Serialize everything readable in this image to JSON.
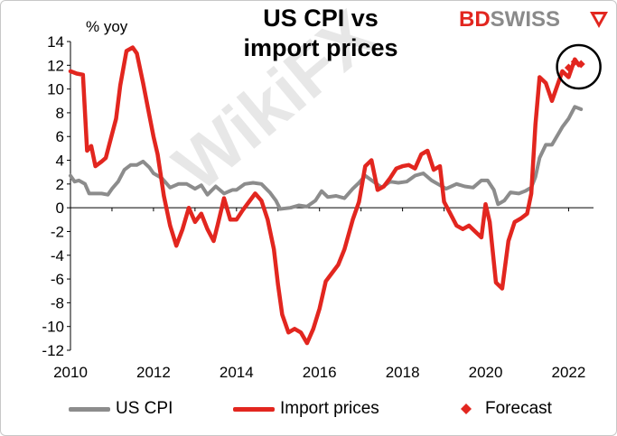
{
  "header": {
    "title": "US CPI vs import prices",
    "brand_bd": "BD",
    "brand_swiss": "SWISS",
    "watermark": "WikiFX"
  },
  "chart_data": {
    "type": "line",
    "title": "US CPI vs import prices",
    "ylabel": "% yoy",
    "xlabel": "",
    "xlim": [
      2010,
      2022.6
    ],
    "ylim": [
      -12,
      14
    ],
    "yticks": [
      14,
      12,
      10,
      8,
      6,
      4,
      2,
      0,
      -2,
      -4,
      -6,
      -8,
      -10,
      -12
    ],
    "xticks": [
      2010,
      2012,
      2014,
      2016,
      2018,
      2020,
      2022
    ],
    "grid": false,
    "legend_position": "bottom",
    "series": [
      {
        "name": "US CPI",
        "color": "#8c8c8c",
        "points": [
          [
            2010.0,
            2.7
          ],
          [
            2010.1,
            2.2
          ],
          [
            2010.2,
            2.3
          ],
          [
            2010.35,
            2.0
          ],
          [
            2010.45,
            1.2
          ],
          [
            2010.6,
            1.2
          ],
          [
            2010.75,
            1.2
          ],
          [
            2010.9,
            1.1
          ],
          [
            2011.0,
            1.6
          ],
          [
            2011.15,
            2.2
          ],
          [
            2011.3,
            3.2
          ],
          [
            2011.45,
            3.6
          ],
          [
            2011.6,
            3.6
          ],
          [
            2011.75,
            3.9
          ],
          [
            2011.9,
            3.4
          ],
          [
            2012.0,
            2.9
          ],
          [
            2012.2,
            2.5
          ],
          [
            2012.4,
            1.7
          ],
          [
            2012.6,
            2.0
          ],
          [
            2012.8,
            2.0
          ],
          [
            2013.0,
            1.6
          ],
          [
            2013.15,
            1.9
          ],
          [
            2013.3,
            1.1
          ],
          [
            2013.5,
            1.8
          ],
          [
            2013.7,
            1.2
          ],
          [
            2013.9,
            1.5
          ],
          [
            2014.0,
            1.5
          ],
          [
            2014.2,
            2.0
          ],
          [
            2014.4,
            2.1
          ],
          [
            2014.6,
            2.0
          ],
          [
            2014.8,
            1.3
          ],
          [
            2014.95,
            0.6
          ],
          [
            2015.05,
            -0.1
          ],
          [
            2015.3,
            0.0
          ],
          [
            2015.5,
            0.2
          ],
          [
            2015.7,
            0.1
          ],
          [
            2015.9,
            0.6
          ],
          [
            2016.05,
            1.4
          ],
          [
            2016.2,
            0.9
          ],
          [
            2016.4,
            1.0
          ],
          [
            2016.6,
            0.8
          ],
          [
            2016.8,
            1.6
          ],
          [
            2016.95,
            2.1
          ],
          [
            2017.1,
            2.7
          ],
          [
            2017.3,
            2.2
          ],
          [
            2017.5,
            1.7
          ],
          [
            2017.7,
            2.2
          ],
          [
            2017.9,
            2.1
          ],
          [
            2018.1,
            2.2
          ],
          [
            2018.3,
            2.7
          ],
          [
            2018.5,
            2.9
          ],
          [
            2018.7,
            2.3
          ],
          [
            2018.9,
            1.9
          ],
          [
            2019.05,
            1.6
          ],
          [
            2019.3,
            2.0
          ],
          [
            2019.5,
            1.8
          ],
          [
            2019.7,
            1.7
          ],
          [
            2019.9,
            2.3
          ],
          [
            2020.05,
            2.3
          ],
          [
            2020.2,
            1.5
          ],
          [
            2020.3,
            0.3
          ],
          [
            2020.45,
            0.6
          ],
          [
            2020.6,
            1.3
          ],
          [
            2020.8,
            1.2
          ],
          [
            2020.95,
            1.4
          ],
          [
            2021.1,
            1.7
          ],
          [
            2021.2,
            2.6
          ],
          [
            2021.3,
            4.2
          ],
          [
            2021.45,
            5.3
          ],
          [
            2021.6,
            5.3
          ],
          [
            2021.75,
            6.2
          ],
          [
            2021.85,
            6.8
          ],
          [
            2022.0,
            7.5
          ],
          [
            2022.15,
            8.5
          ],
          [
            2022.3,
            8.3
          ]
        ]
      },
      {
        "name": "Import prices",
        "color": "#e2261f",
        "points": [
          [
            2010.0,
            11.5
          ],
          [
            2010.15,
            11.3
          ],
          [
            2010.3,
            11.2
          ],
          [
            2010.4,
            4.8
          ],
          [
            2010.5,
            5.2
          ],
          [
            2010.6,
            3.5
          ],
          [
            2010.75,
            3.9
          ],
          [
            2010.85,
            4.2
          ],
          [
            2011.0,
            6.2
          ],
          [
            2011.1,
            7.5
          ],
          [
            2011.2,
            10.3
          ],
          [
            2011.35,
            13.2
          ],
          [
            2011.5,
            13.5
          ],
          [
            2011.6,
            13.0
          ],
          [
            2011.75,
            10.5
          ],
          [
            2011.9,
            7.8
          ],
          [
            2012.0,
            6.0
          ],
          [
            2012.1,
            4.5
          ],
          [
            2012.25,
            1.0
          ],
          [
            2012.4,
            -1.5
          ],
          [
            2012.55,
            -3.2
          ],
          [
            2012.7,
            -1.8
          ],
          [
            2012.85,
            0.0
          ],
          [
            2013.0,
            -1.2
          ],
          [
            2013.15,
            -0.5
          ],
          [
            2013.3,
            -1.8
          ],
          [
            2013.45,
            -2.8
          ],
          [
            2013.55,
            -1.4
          ],
          [
            2013.7,
            0.8
          ],
          [
            2013.85,
            -1.0
          ],
          [
            2014.0,
            -1.0
          ],
          [
            2014.15,
            -0.2
          ],
          [
            2014.3,
            0.5
          ],
          [
            2014.45,
            1.2
          ],
          [
            2014.6,
            0.6
          ],
          [
            2014.75,
            -1.0
          ],
          [
            2014.9,
            -3.5
          ],
          [
            2015.0,
            -6.5
          ],
          [
            2015.1,
            -9.0
          ],
          [
            2015.25,
            -10.5
          ],
          [
            2015.4,
            -10.2
          ],
          [
            2015.55,
            -10.5
          ],
          [
            2015.7,
            -11.4
          ],
          [
            2015.85,
            -10.2
          ],
          [
            2016.0,
            -8.5
          ],
          [
            2016.15,
            -6.2
          ],
          [
            2016.3,
            -5.5
          ],
          [
            2016.45,
            -4.8
          ],
          [
            2016.6,
            -3.5
          ],
          [
            2016.8,
            -1.0
          ],
          [
            2016.95,
            0.5
          ],
          [
            2017.1,
            3.5
          ],
          [
            2017.25,
            4.0
          ],
          [
            2017.4,
            1.5
          ],
          [
            2017.55,
            1.8
          ],
          [
            2017.7,
            2.5
          ],
          [
            2017.85,
            3.3
          ],
          [
            2018.0,
            3.5
          ],
          [
            2018.15,
            3.6
          ],
          [
            2018.3,
            3.3
          ],
          [
            2018.45,
            4.5
          ],
          [
            2018.6,
            4.8
          ],
          [
            2018.75,
            3.2
          ],
          [
            2018.9,
            3.5
          ],
          [
            2019.0,
            0.5
          ],
          [
            2019.15,
            -0.5
          ],
          [
            2019.3,
            -1.5
          ],
          [
            2019.45,
            -1.8
          ],
          [
            2019.6,
            -1.5
          ],
          [
            2019.75,
            -2.0
          ],
          [
            2019.9,
            -2.5
          ],
          [
            2020.0,
            0.3
          ],
          [
            2020.1,
            -1.2
          ],
          [
            2020.25,
            -6.3
          ],
          [
            2020.4,
            -6.8
          ],
          [
            2020.55,
            -2.8
          ],
          [
            2020.7,
            -1.2
          ],
          [
            2020.85,
            -0.9
          ],
          [
            2021.0,
            -0.5
          ],
          [
            2021.1,
            1.2
          ],
          [
            2021.2,
            7.0
          ],
          [
            2021.3,
            11.0
          ],
          [
            2021.45,
            10.5
          ],
          [
            2021.6,
            9.0
          ],
          [
            2021.75,
            10.5
          ],
          [
            2021.85,
            11.5
          ],
          [
            2022.0,
            11.0
          ],
          [
            2022.15,
            12.5
          ],
          [
            2022.25,
            12.0
          ]
        ]
      },
      {
        "name": "Forecast",
        "color": "#e2261f",
        "marker": "diamond",
        "points": [
          [
            2022.0,
            11.8
          ],
          [
            2022.15,
            12.3
          ],
          [
            2022.3,
            12.1
          ]
        ]
      }
    ],
    "annotations": [
      {
        "type": "circle",
        "x": 2022.2,
        "y": 12.1
      }
    ]
  },
  "legend": {
    "items": [
      {
        "label": "US CPI",
        "color": "#8c8c8c",
        "kind": "line"
      },
      {
        "label": "Import prices",
        "color": "#e2261f",
        "kind": "line"
      },
      {
        "label": "Forecast",
        "color": "#e2261f",
        "kind": "diamond"
      }
    ]
  }
}
